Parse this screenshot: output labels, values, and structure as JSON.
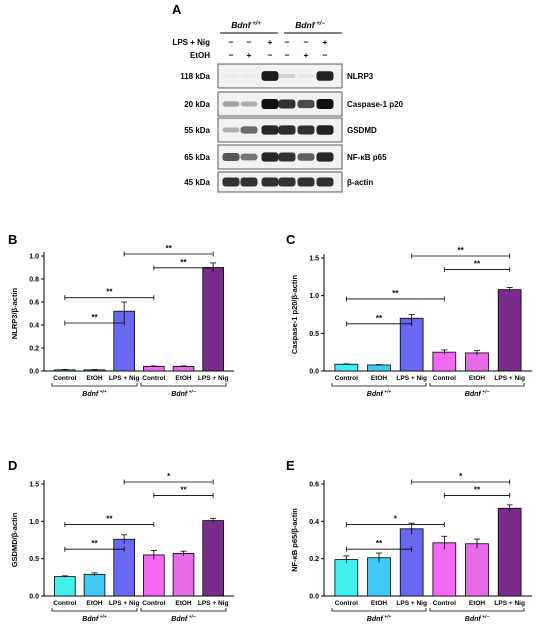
{
  "panel_letters": [
    "A",
    "B",
    "C",
    "D",
    "E"
  ],
  "western_blot": {
    "genotypes": [
      {
        "name": "Bdnf",
        "sup": "+/+"
      },
      {
        "name": "Bdnf",
        "sup": "+/−"
      }
    ],
    "treatment_rows": [
      {
        "label": "LPS + Nig",
        "signs": [
          "−",
          "−",
          "+",
          "−",
          "−",
          "+"
        ]
      },
      {
        "label": "EtOH",
        "signs": [
          "−",
          "+",
          "−",
          "−",
          "+",
          "−"
        ]
      }
    ],
    "bands": [
      {
        "kda": "118 kDa",
        "protein": "NLRP3",
        "intensity": [
          0.02,
          0.02,
          0.95,
          0.15,
          0.05,
          0.92
        ]
      },
      {
        "kda": "20 kDa",
        "protein": "Caspase-1 p20",
        "intensity": [
          0.35,
          0.3,
          1.0,
          0.85,
          0.75,
          1.0
        ]
      },
      {
        "kda": "55 kDa",
        "protein": "GSDMD",
        "intensity": [
          0.3,
          0.6,
          0.9,
          0.88,
          0.85,
          0.92
        ]
      },
      {
        "kda": "65 kDa",
        "protein": "NF-κB p65",
        "intensity": [
          0.7,
          0.55,
          0.9,
          0.85,
          0.65,
          0.9
        ]
      },
      {
        "kda": "45 kDa",
        "protein": "β-actin",
        "intensity": [
          0.85,
          0.85,
          0.85,
          0.85,
          0.85,
          0.85
        ]
      }
    ]
  },
  "colors": {
    "Control_wt": "#3ff0ef",
    "EtOH_wt": "#42c9f5",
    "LPS_wt": "#6868f2",
    "Control_het": "#f268f2",
    "EtOH_het": "#e76ae6",
    "LPS_het": "#7a2c8c"
  },
  "chart_data": [
    {
      "type": "bar",
      "panel": "B",
      "categories": [
        "Control",
        "EtOH",
        "LPS + Nig",
        "Control",
        "EtOH",
        "LPS + Nig"
      ],
      "groups": [
        {
          "name": "Bdnf",
          "sup": "+/+"
        },
        {
          "name": "Bdnf",
          "sup": "+/−"
        }
      ],
      "values": [
        0.01,
        0.01,
        0.52,
        0.04,
        0.04,
        0.9
      ],
      "errors": [
        0.003,
        0.003,
        0.08,
        0.004,
        0.004,
        0.04
      ],
      "ylabel": "NLRP3/β-actin",
      "ylim": [
        0,
        1.0
      ],
      "yticks": [
        "0.0",
        "0.2",
        "0.4",
        "0.6",
        "0.8",
        "1.0"
      ],
      "comparisons": [
        {
          "from": 0,
          "to": 2,
          "label": "**"
        },
        {
          "from": 0,
          "to": 3,
          "label": "**"
        },
        {
          "from": 3,
          "to": 5,
          "label": "**"
        },
        {
          "from": 2,
          "to": 5,
          "label": "**"
        }
      ]
    },
    {
      "type": "bar",
      "panel": "C",
      "categories": [
        "Control",
        "EtOH",
        "LPS + Nig",
        "Control",
        "EtOH",
        "LPS + Nig"
      ],
      "groups": [
        {
          "name": "Bdnf",
          "sup": "+/+"
        },
        {
          "name": "Bdnf",
          "sup": "+/−"
        }
      ],
      "values": [
        0.09,
        0.08,
        0.7,
        0.25,
        0.24,
        1.08
      ],
      "errors": [
        0.005,
        0.005,
        0.05,
        0.03,
        0.03,
        0.03
      ],
      "ylabel": "Caspase-1 p20/β-actin",
      "ylim": [
        0,
        1.5
      ],
      "yticks": [
        "0.0",
        "0.5",
        "1.0",
        "1.5"
      ],
      "comparisons": [
        {
          "from": 0,
          "to": 2,
          "label": "**"
        },
        {
          "from": 0,
          "to": 3,
          "label": "**"
        },
        {
          "from": 3,
          "to": 5,
          "label": "**"
        },
        {
          "from": 2,
          "to": 5,
          "label": "**"
        }
      ]
    },
    {
      "type": "bar",
      "panel": "D",
      "categories": [
        "Control",
        "EtOH",
        "LPS + Nig",
        "Control",
        "EtOH",
        "LPS + Nig"
      ],
      "groups": [
        {
          "name": "Bdnf",
          "sup": "+/+"
        },
        {
          "name": "Bdnf",
          "sup": "+/−"
        }
      ],
      "values": [
        0.26,
        0.29,
        0.76,
        0.55,
        0.57,
        1.01
      ],
      "errors": [
        0.01,
        0.02,
        0.06,
        0.06,
        0.03,
        0.03
      ],
      "ylabel": "GSDMD/β-actin",
      "ylim": [
        0,
        1.5
      ],
      "yticks": [
        "0.0",
        "0.5",
        "1.0",
        "1.5"
      ],
      "comparisons": [
        {
          "from": 0,
          "to": 2,
          "label": "**"
        },
        {
          "from": 0,
          "to": 3,
          "label": "**"
        },
        {
          "from": 3,
          "to": 5,
          "label": "**"
        },
        {
          "from": 2,
          "to": 5,
          "label": "*"
        }
      ]
    },
    {
      "type": "bar",
      "panel": "E",
      "categories": [
        "Control",
        "EtOH",
        "LPS + Nig",
        "Control",
        "EtOH",
        "LPS + Nig"
      ],
      "groups": [
        {
          "name": "Bdnf",
          "sup": "+/+"
        },
        {
          "name": "Bdnf",
          "sup": "+/−"
        }
      ],
      "values": [
        0.195,
        0.205,
        0.36,
        0.285,
        0.28,
        0.47
      ],
      "errors": [
        0.02,
        0.025,
        0.03,
        0.035,
        0.025,
        0.018
      ],
      "ylabel": "NF-κB p65/β-actin",
      "ylim": [
        0,
        0.6
      ],
      "yticks": [
        "0.0",
        "0.2",
        "0.4",
        "0.6"
      ],
      "comparisons": [
        {
          "from": 0,
          "to": 2,
          "label": "**"
        },
        {
          "from": 0,
          "to": 3,
          "label": "*"
        },
        {
          "from": 3,
          "to": 5,
          "label": "**"
        },
        {
          "from": 2,
          "to": 5,
          "label": "*"
        }
      ]
    }
  ]
}
